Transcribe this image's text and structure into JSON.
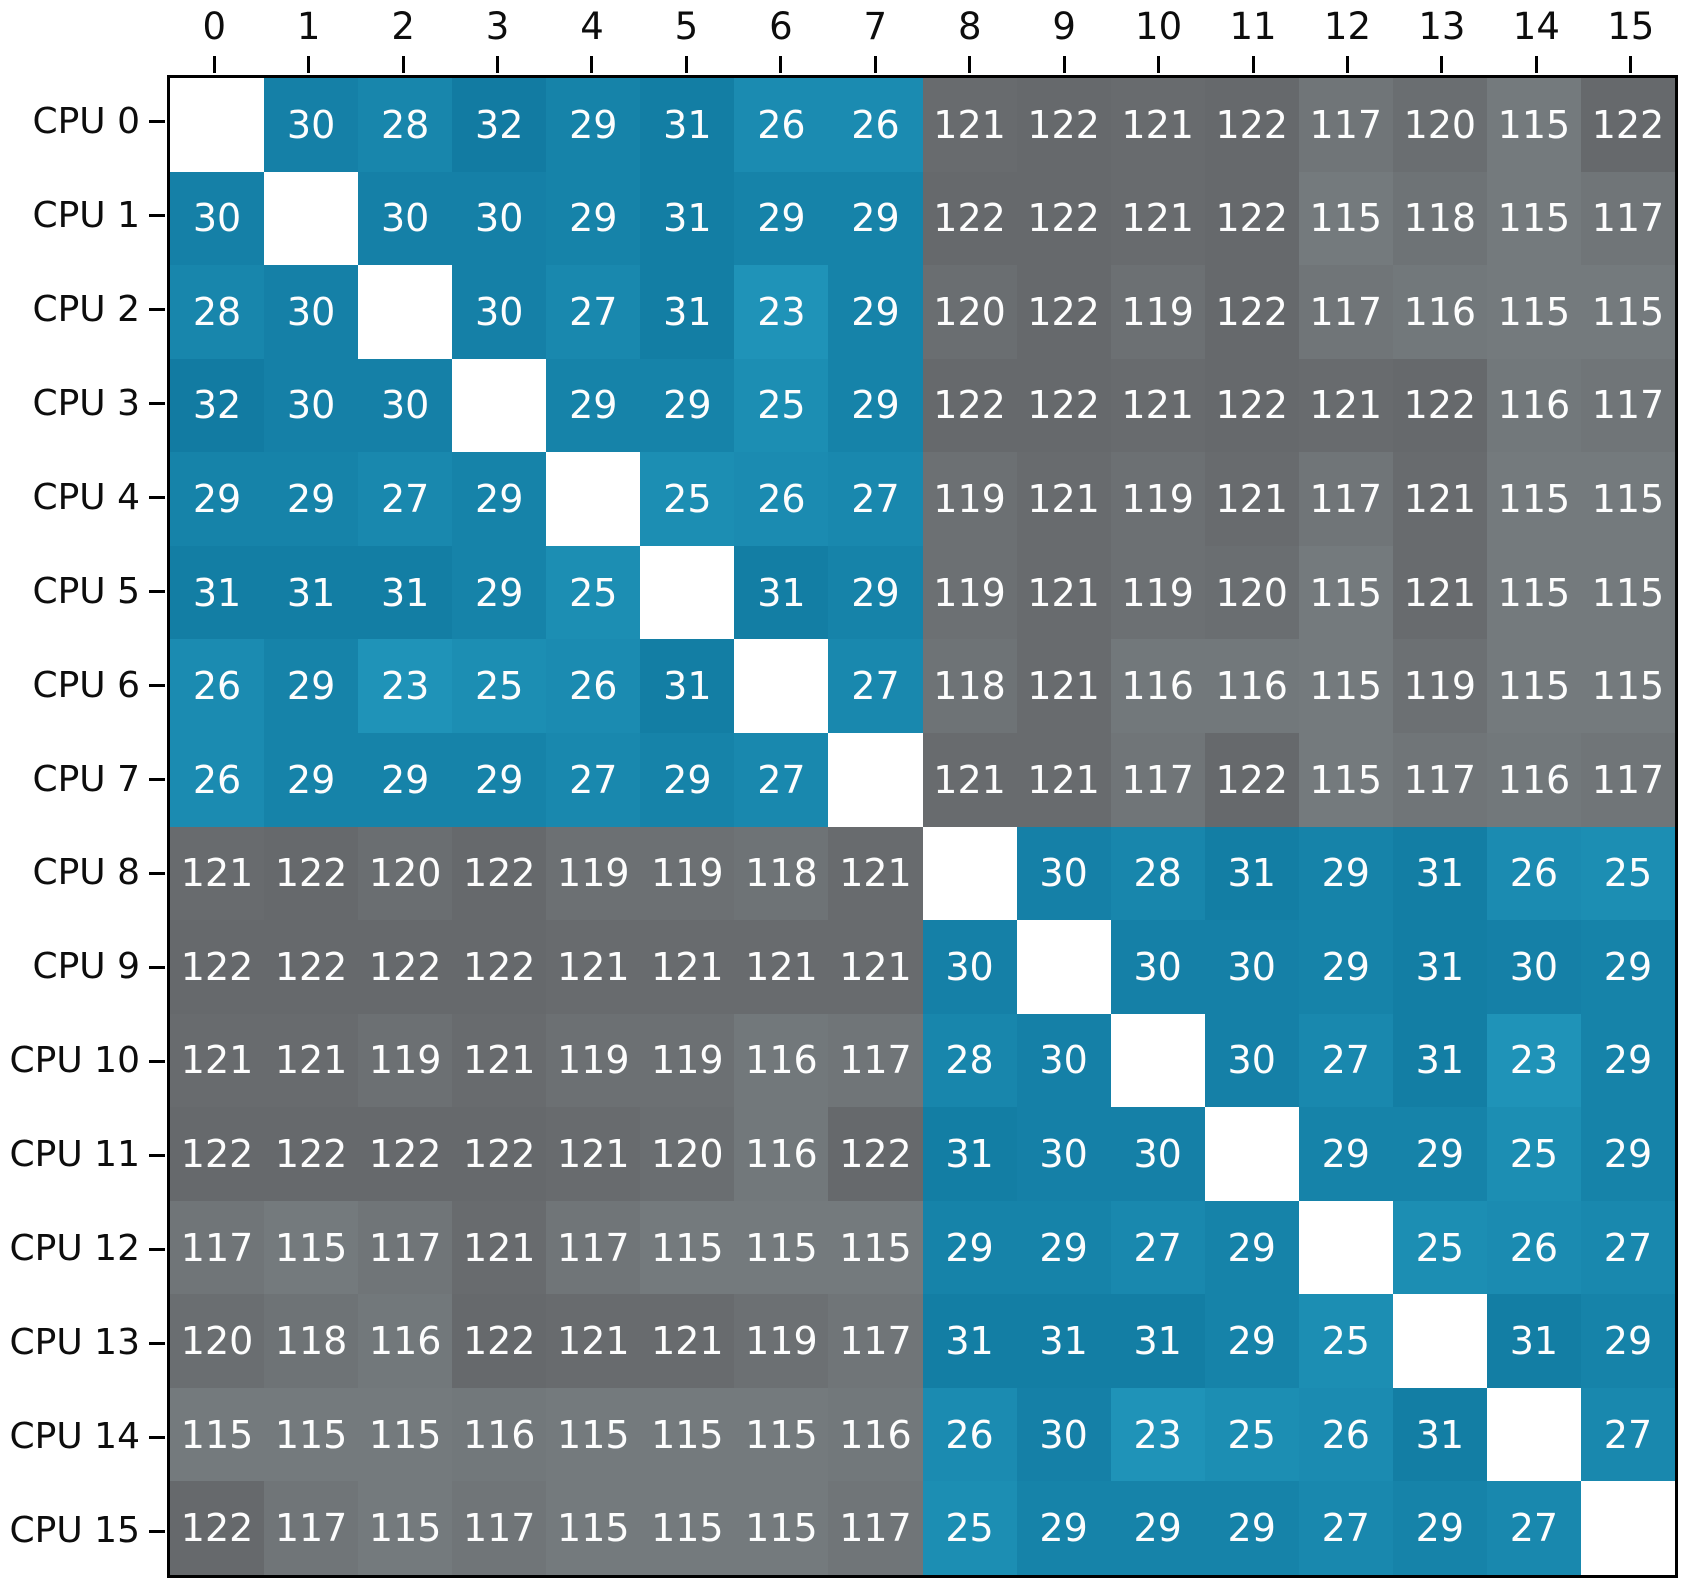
{
  "figure": {
    "background_color": "#ffffff",
    "border_color": "#000000",
    "tick_color": "#000000",
    "axis_label_color": "#0d0d0d"
  },
  "chart_data": {
    "type": "heatmap",
    "title": "",
    "xlabel": "",
    "ylabel": "",
    "x_tick_labels": [
      "0",
      "1",
      "2",
      "3",
      "4",
      "5",
      "6",
      "7",
      "8",
      "9",
      "10",
      "11",
      "12",
      "13",
      "14",
      "15"
    ],
    "y_tick_labels": [
      "CPU 0",
      "CPU 1",
      "CPU 2",
      "CPU 3",
      "CPU 4",
      "CPU 5",
      "CPU 6",
      "CPU 7",
      "CPU 8",
      "CPU 9",
      "CPU 10",
      "CPU 11",
      "CPU 12",
      "CPU 13",
      "CPU 14",
      "CPU 15"
    ],
    "matrix": [
      [
        null,
        30,
        28,
        32,
        29,
        31,
        26,
        26,
        121,
        122,
        121,
        122,
        117,
        120,
        115,
        122
      ],
      [
        30,
        null,
        30,
        30,
        29,
        31,
        29,
        29,
        122,
        122,
        121,
        122,
        115,
        118,
        115,
        117
      ],
      [
        28,
        30,
        null,
        30,
        27,
        31,
        23,
        29,
        120,
        122,
        119,
        122,
        117,
        116,
        115,
        115
      ],
      [
        32,
        30,
        30,
        null,
        29,
        29,
        25,
        29,
        122,
        122,
        121,
        122,
        121,
        122,
        116,
        117
      ],
      [
        29,
        29,
        27,
        29,
        null,
        25,
        26,
        27,
        119,
        121,
        119,
        121,
        117,
        121,
        115,
        115
      ],
      [
        31,
        31,
        31,
        29,
        25,
        null,
        31,
        29,
        119,
        121,
        119,
        120,
        115,
        121,
        115,
        115
      ],
      [
        26,
        29,
        23,
        25,
        26,
        31,
        null,
        27,
        118,
        121,
        116,
        116,
        115,
        119,
        115,
        115
      ],
      [
        26,
        29,
        29,
        29,
        27,
        29,
        27,
        null,
        121,
        121,
        117,
        122,
        115,
        117,
        116,
        117
      ],
      [
        121,
        122,
        120,
        122,
        119,
        119,
        118,
        121,
        null,
        30,
        28,
        31,
        29,
        31,
        26,
        25
      ],
      [
        122,
        122,
        122,
        122,
        121,
        121,
        121,
        121,
        30,
        null,
        30,
        30,
        29,
        31,
        30,
        29
      ],
      [
        121,
        121,
        119,
        121,
        119,
        119,
        116,
        117,
        28,
        30,
        null,
        30,
        27,
        31,
        23,
        29
      ],
      [
        122,
        122,
        122,
        122,
        121,
        120,
        116,
        122,
        31,
        30,
        30,
        null,
        29,
        29,
        25,
        29
      ],
      [
        117,
        115,
        117,
        121,
        117,
        115,
        115,
        115,
        29,
        29,
        27,
        29,
        null,
        25,
        26,
        27
      ],
      [
        120,
        118,
        116,
        122,
        121,
        121,
        119,
        117,
        31,
        31,
        31,
        29,
        25,
        null,
        31,
        29
      ],
      [
        115,
        115,
        115,
        116,
        115,
        115,
        115,
        116,
        26,
        30,
        23,
        25,
        26,
        31,
        null,
        27
      ],
      [
        122,
        117,
        115,
        117,
        115,
        115,
        115,
        117,
        25,
        29,
        29,
        29,
        27,
        29,
        27,
        null
      ]
    ],
    "diagonal_color": "#ffffff",
    "cell_text_color": "#fdfdfd",
    "band_threshold": 60,
    "color_bands": [
      {
        "name": "same-cluster-blue",
        "min": 23,
        "max": 32,
        "color_at_min": "#1f93b8",
        "color_at_max": "#127ba2"
      },
      {
        "name": "cross-cluster-gray",
        "min": 115,
        "max": 122,
        "color_at_min": "#747a7d",
        "color_at_max": "#66696c"
      }
    ],
    "value_range": [
      23,
      122
    ],
    "grid": false,
    "legend": "none"
  }
}
